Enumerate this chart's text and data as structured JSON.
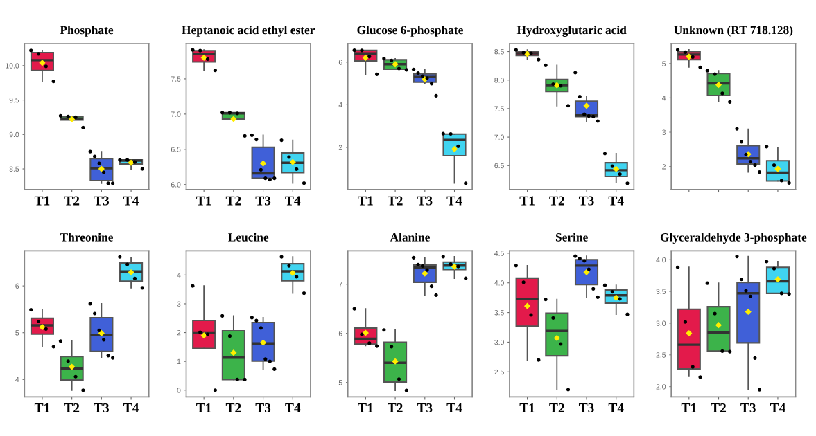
{
  "chart_data": [
    {
      "type": "box",
      "title": "Phosphate",
      "categories": [
        "T1",
        "T2",
        "T3",
        "T4"
      ],
      "colors": [
        "#e31a4b",
        "#3cb34a",
        "#4060d8",
        "#40d4f0"
      ],
      "ylim": [
        8.2,
        10.32
      ],
      "yticks": [
        {
          "value": 8.5,
          "label": "8.5"
        },
        {
          "value": 9.0,
          "label": "9.0"
        },
        {
          "value": 9.5,
          "label": "9.5"
        },
        {
          "value": 10.0,
          "label": "10.0"
        }
      ],
      "boxes": [
        {
          "low": 9.77,
          "q1": 9.93,
          "median": 10.08,
          "q3": 10.19,
          "high": 10.22,
          "mean": 10.04
        },
        {
          "low": 9.21,
          "q1": 9.21,
          "median": 9.23,
          "q3": 9.26,
          "high": 9.26,
          "mean": 9.22
        },
        {
          "low": 8.29,
          "q1": 8.33,
          "median": 8.51,
          "q3": 8.65,
          "high": 8.75,
          "mean": 8.5
        },
        {
          "low": 8.5,
          "q1": 8.57,
          "median": 8.62,
          "q3": 8.63,
          "high": 8.63,
          "mean": 8.59
        }
      ],
      "series": [
        {
          "type": "scatter",
          "color": "#000000",
          "marker": "circle",
          "x": [
            "T1",
            "T1",
            "T1",
            "T1",
            "T2",
            "T2",
            "T2",
            "T2",
            "T3",
            "T3",
            "T3",
            "T3",
            "T3",
            "T3",
            "T4",
            "T4",
            "T4",
            "T4"
          ],
          "values": [
            10.22,
            10.17,
            9.99,
            9.77,
            9.27,
            9.26,
            9.25,
            9.1,
            8.75,
            8.68,
            8.58,
            8.45,
            8.29,
            8.29,
            8.63,
            8.63,
            8.6,
            8.5
          ]
        }
      ]
    },
    {
      "type": "box",
      "title": "Heptanoic acid ethyl ester",
      "categories": [
        "T1",
        "T2",
        "T3",
        "T4"
      ],
      "colors": [
        "#e31a4b",
        "#3cb34a",
        "#4060d8",
        "#40d4f0"
      ],
      "ylim": [
        5.93,
        8.0
      ],
      "yticks": [
        {
          "value": 6.0,
          "label": "6.0"
        },
        {
          "value": 6.5,
          "label": "6.5"
        },
        {
          "value": 7.0,
          "label": "7.0"
        },
        {
          "value": 7.5,
          "label": "7.5"
        }
      ],
      "boxes": [
        {
          "low": 7.62,
          "q1": 7.74,
          "median": 7.85,
          "q3": 7.9,
          "high": 7.91,
          "mean": 7.8
        },
        {
          "low": 6.93,
          "q1": 6.93,
          "median": 7.01,
          "q3": 7.02,
          "high": 7.02,
          "mean": 6.93
        },
        {
          "low": 6.09,
          "q1": 6.09,
          "median": 6.16,
          "q3": 6.53,
          "high": 6.7,
          "mean": 6.3
        },
        {
          "low": 6.02,
          "q1": 6.17,
          "median": 6.31,
          "q3": 6.45,
          "high": 6.63,
          "mean": 6.32
        }
      ],
      "series": [
        {
          "type": "scatter",
          "color": "#000000",
          "marker": "circle",
          "x": [
            "T1",
            "T1",
            "T1",
            "T1",
            "T2",
            "T2",
            "T2",
            "T2",
            "T3",
            "T3",
            "T3",
            "T3",
            "T3",
            "T3",
            "T4",
            "T4",
            "T4",
            "T4"
          ],
          "values": [
            7.91,
            7.9,
            7.78,
            7.62,
            7.02,
            7.02,
            7.01,
            6.69,
            6.7,
            6.64,
            6.21,
            6.09,
            6.07,
            6.09,
            6.63,
            6.39,
            6.22,
            6.02
          ]
        }
      ]
    },
    {
      "type": "box",
      "title": "Glucose 6-phosphate",
      "categories": [
        "T1",
        "T2",
        "T3",
        "T4"
      ],
      "colors": [
        "#e31a4b",
        "#3cb34a",
        "#4060d8",
        "#40d4f0"
      ],
      "ylim": [
        0.02,
        6.87
      ],
      "yticks": [
        2,
        4,
        6
      ],
      "boxes": [
        {
          "low": 5.44,
          "q1": 6.06,
          "median": 6.41,
          "q3": 6.55,
          "high": 6.55,
          "mean": 6.21
        },
        {
          "low": 5.67,
          "q1": 5.67,
          "median": 5.9,
          "q3": 6.11,
          "high": 6.16,
          "mean": 5.9
        },
        {
          "low": 4.99,
          "q1": 5.06,
          "median": 5.3,
          "q3": 5.45,
          "high": 5.64,
          "mean": 5.19
        },
        {
          "low": 0.32,
          "q1": 1.61,
          "median": 2.35,
          "q3": 2.62,
          "high": 2.62,
          "mean": 1.92
        }
      ],
      "series": [
        {
          "type": "scatter",
          "color": "#000000",
          "marker": "circle",
          "x": [
            "T1",
            "T1",
            "T1",
            "T1",
            "T2",
            "T2",
            "T2",
            "T2",
            "T3",
            "T3",
            "T3",
            "T3",
            "T3",
            "T3",
            "T4",
            "T4",
            "T4",
            "T4"
          ],
          "values": [
            6.56,
            6.55,
            6.26,
            5.43,
            6.17,
            6.08,
            5.7,
            5.64,
            5.66,
            5.49,
            5.34,
            5.25,
            4.99,
            4.42,
            2.64,
            2.63,
            2.05,
            0.31
          ]
        }
      ]
    },
    {
      "type": "box",
      "title": "Hydroxyglutaric acid",
      "categories": [
        "T1",
        "T2",
        "T3",
        "T4"
      ],
      "colors": [
        "#e31a4b",
        "#3cb34a",
        "#4060d8",
        "#40d4f0"
      ],
      "ylim": [
        6.08,
        8.64
      ],
      "yticks": [
        {
          "value": 6.5,
          "label": "6.5"
        },
        {
          "value": 7.0,
          "label": "7.0"
        },
        {
          "value": 7.5,
          "label": "7.5"
        },
        {
          "value": 8.0,
          "label": "8.0"
        },
        {
          "value": 8.5,
          "label": "8.5"
        }
      ],
      "boxes": [
        {
          "low": 8.36,
          "q1": 8.43,
          "median": 8.47,
          "q3": 8.5,
          "high": 8.53,
          "mean": 8.46
        },
        {
          "low": 7.55,
          "q1": 7.8,
          "median": 7.91,
          "q3": 8.01,
          "high": 8.26,
          "mean": 7.91
        },
        {
          "low": 7.28,
          "q1": 7.36,
          "median": 7.38,
          "q3": 7.63,
          "high": 7.71,
          "mean": 7.55
        },
        {
          "low": 6.2,
          "q1": 6.31,
          "median": 6.42,
          "q3": 6.55,
          "high": 6.71,
          "mean": 6.44
        }
      ],
      "series": [
        {
          "type": "scatter",
          "color": "#000000",
          "marker": "circle",
          "x": [
            "T1",
            "T1",
            "T1",
            "T1",
            "T2",
            "T2",
            "T2",
            "T2",
            "T3",
            "T3",
            "T3",
            "T3",
            "T3",
            "T3",
            "T4",
            "T4",
            "T4",
            "T4"
          ],
          "values": [
            8.53,
            8.48,
            8.47,
            8.36,
            8.26,
            7.93,
            7.9,
            7.55,
            8.13,
            7.71,
            7.4,
            7.37,
            7.36,
            7.28,
            6.71,
            6.49,
            6.35,
            6.19
          ]
        }
      ]
    },
    {
      "type": "box",
      "title": "Unknown (RT 718.128)",
      "categories": [
        "T1",
        "T2",
        "T3",
        "T4"
      ],
      "tick_labels": "y",
      "colors": [
        "#e31a4b",
        "#3cb34a",
        "#4060d8",
        "#40d4f0"
      ],
      "ylim": [
        1.33,
        5.58
      ],
      "yticks": [
        2,
        3,
        4,
        5
      ],
      "boxes": [
        {
          "low": 4.9,
          "q1": 5.11,
          "median": 5.26,
          "q3": 5.35,
          "high": 5.4,
          "mean": 5.2
        },
        {
          "low": 3.89,
          "q1": 4.07,
          "median": 4.42,
          "q3": 4.71,
          "high": 4.79,
          "mean": 4.38
        },
        {
          "low": 1.84,
          "q1": 2.07,
          "median": 2.24,
          "q3": 2.61,
          "high": 3.09,
          "mean": 2.36
        },
        {
          "low": 1.58,
          "q1": 1.58,
          "median": 1.82,
          "q3": 2.17,
          "high": 2.56,
          "mean": 1.93
        }
      ],
      "series": [
        {
          "type": "scatter",
          "color": "#000000",
          "marker": "circle",
          "x": [
            "T1",
            "T1",
            "T1",
            "T1",
            "T2",
            "T2",
            "T2",
            "T2",
            "T3",
            "T3",
            "T3",
            "T3",
            "T3",
            "T3",
            "T4",
            "T4",
            "T4",
            "T4"
          ],
          "values": [
            5.4,
            5.33,
            5.19,
            4.89,
            4.79,
            4.69,
            4.13,
            3.88,
            3.1,
            2.72,
            2.35,
            2.14,
            2.04,
            1.84,
            2.58,
            2.04,
            1.59,
            1.52
          ]
        }
      ]
    },
    {
      "type": "box",
      "title": "Threonine",
      "categories": [
        "T1",
        "T2",
        "T3",
        "T4"
      ],
      "colors": [
        "#e31a4b",
        "#3cb34a",
        "#4060d8",
        "#40d4f0"
      ],
      "ylim": [
        3.63,
        6.75
      ],
      "yticks": [
        4,
        5,
        6
      ],
      "boxes": [
        {
          "low": 4.7,
          "q1": 4.97,
          "median": 5.16,
          "q3": 5.31,
          "high": 5.49,
          "mean": 5.12
        },
        {
          "low": 3.77,
          "q1": 3.99,
          "median": 4.23,
          "q3": 4.49,
          "high": 4.82,
          "mean": 4.27
        },
        {
          "low": 4.47,
          "q1": 4.6,
          "median": 4.95,
          "q3": 5.32,
          "high": 5.62,
          "mean": 4.99
        },
        {
          "low": 5.96,
          "q1": 6.1,
          "median": 6.31,
          "q3": 6.49,
          "high": 6.61,
          "mean": 6.29
        }
      ],
      "series": [
        {
          "type": "scatter",
          "color": "#000000",
          "marker": "circle",
          "x": [
            "T1",
            "T1",
            "T1",
            "T1",
            "T2",
            "T2",
            "T2",
            "T2",
            "T3",
            "T3",
            "T3",
            "T3",
            "T3",
            "T3",
            "T4",
            "T4",
            "T4",
            "T4"
          ],
          "values": [
            5.49,
            5.24,
            5.08,
            4.7,
            4.82,
            4.39,
            4.06,
            3.77,
            5.62,
            5.41,
            5.05,
            4.85,
            4.51,
            4.46,
            6.62,
            6.46,
            6.16,
            5.96
          ]
        }
      ]
    },
    {
      "type": "box",
      "title": "Leucine",
      "categories": [
        "T1",
        "T2",
        "T3",
        "T4"
      ],
      "colors": [
        "#e31a4b",
        "#3cb34a",
        "#4060d8",
        "#40d4f0"
      ],
      "ylim": [
        -0.23,
        4.84
      ],
      "yticks": [
        0,
        1,
        2,
        3,
        4
      ],
      "boxes": [
        {
          "low": 1.45,
          "q1": 1.45,
          "median": 1.98,
          "q3": 2.42,
          "high": 3.62,
          "mean": 1.9
        },
        {
          "low": 0.37,
          "q1": 0.37,
          "median": 1.13,
          "q3": 2.06,
          "high": 2.58,
          "mean": 1.3
        },
        {
          "low": 0.73,
          "q1": 1.01,
          "median": 1.62,
          "q3": 2.35,
          "high": 2.52,
          "mean": 1.65
        },
        {
          "low": 3.37,
          "q1": 3.8,
          "median": 4.13,
          "q3": 4.39,
          "high": 4.63,
          "mean": 4.07
        }
      ],
      "series": [
        {
          "type": "scatter",
          "color": "#000000",
          "marker": "circle",
          "x": [
            "T1",
            "T1",
            "T1",
            "T1",
            "T2",
            "T2",
            "T2",
            "T2",
            "T3",
            "T3",
            "T3",
            "T3",
            "T3",
            "T3",
            "T4",
            "T4",
            "T4",
            "T4"
          ],
          "values": [
            3.62,
            2.01,
            1.94,
            0.0,
            2.58,
            1.88,
            0.37,
            0.37,
            2.52,
            2.42,
            2.16,
            1.08,
            1.0,
            0.73,
            4.63,
            4.32,
            3.94,
            3.37
          ]
        }
      ]
    },
    {
      "type": "box",
      "title": "Alanine",
      "categories": [
        "T1",
        "T2",
        "T3",
        "T4"
      ],
      "colors": [
        "#e31a4b",
        "#3cb34a",
        "#4060d8",
        "#40d4f0"
      ],
      "ylim": [
        4.71,
        7.68
      ],
      "yticks": [
        5,
        6,
        7
      ],
      "boxes": [
        {
          "low": 5.75,
          "q1": 5.78,
          "median": 5.89,
          "q3": 6.11,
          "high": 6.5,
          "mean": 6.01
        },
        {
          "low": 4.84,
          "q1": 5.01,
          "median": 5.4,
          "q3": 5.82,
          "high": 6.07,
          "mean": 5.43
        },
        {
          "low": 6.78,
          "q1": 7.04,
          "median": 7.34,
          "q3": 7.39,
          "high": 7.54,
          "mean": 7.22
        },
        {
          "low": 7.12,
          "q1": 7.3,
          "median": 7.38,
          "q3": 7.45,
          "high": 7.56,
          "mean": 7.36
        }
      ],
      "series": [
        {
          "type": "scatter",
          "color": "#000000",
          "marker": "circle",
          "x": [
            "T1",
            "T1",
            "T1",
            "T1",
            "T2",
            "T2",
            "T2",
            "T2",
            "T3",
            "T3",
            "T3",
            "T3",
            "T3",
            "T3",
            "T4",
            "T4",
            "T4",
            "T4"
          ],
          "values": [
            6.5,
            5.98,
            5.8,
            5.74,
            6.07,
            5.73,
            5.07,
            4.84,
            7.54,
            7.4,
            7.37,
            7.29,
            6.96,
            6.78,
            7.56,
            7.41,
            7.36,
            7.12
          ]
        }
      ]
    },
    {
      "type": "box",
      "title": "Serine",
      "categories": [
        "T1",
        "T2",
        "T3",
        "T4"
      ],
      "colors": [
        "#e31a4b",
        "#3cb34a",
        "#4060d8",
        "#40d4f0"
      ],
      "ylim": [
        2.08,
        4.54
      ],
      "yticks": [
        {
          "value": 2.5,
          "label": "2.5"
        },
        {
          "value": 3.0,
          "label": "3.0"
        },
        {
          "value": 3.5,
          "label": "3.5"
        },
        {
          "value": 4.0,
          "label": "4.0"
        },
        {
          "value": 4.5,
          "label": "4.5"
        }
      ],
      "boxes": [
        {
          "low": 2.7,
          "q1": 3.27,
          "median": 3.73,
          "q3": 4.08,
          "high": 4.29,
          "mean": 3.61
        },
        {
          "low": 2.2,
          "q1": 2.77,
          "median": 3.19,
          "q3": 3.49,
          "high": 3.72,
          "mean": 3.07
        },
        {
          "low": 3.76,
          "q1": 3.97,
          "median": 4.29,
          "q3": 4.39,
          "high": 4.45,
          "mean": 4.18
        },
        {
          "low": 3.47,
          "q1": 3.66,
          "median": 3.79,
          "q3": 3.88,
          "high": 3.96,
          "mean": 3.75
        }
      ],
      "series": [
        {
          "type": "scatter",
          "color": "#000000",
          "marker": "circle",
          "x": [
            "T1",
            "T1",
            "T1",
            "T1",
            "T2",
            "T2",
            "T2",
            "T2",
            "T3",
            "T3",
            "T3",
            "T3",
            "T3",
            "T3",
            "T4",
            "T4",
            "T4",
            "T4"
          ],
          "values": [
            4.29,
            4.01,
            3.46,
            2.7,
            3.72,
            3.41,
            2.97,
            2.2,
            4.45,
            4.41,
            4.37,
            4.23,
            3.9,
            3.76,
            3.96,
            3.85,
            3.73,
            3.47
          ]
        }
      ]
    },
    {
      "type": "box",
      "title": "Glyceraldehyde 3-phosphate",
      "categories": [
        "T1",
        "T2",
        "T3",
        "T4"
      ],
      "colors": [
        "#e31a4b",
        "#3cb34a",
        "#4060d8",
        "#40d4f0"
      ],
      "ylim": [
        1.84,
        4.14
      ],
      "yticks": [
        {
          "value": 2.0,
          "label": "2.0"
        },
        {
          "value": 2.5,
          "label": "2.5"
        },
        {
          "value": 3.0,
          "label": "3.0"
        },
        {
          "value": 3.5,
          "label": "3.5"
        },
        {
          "value": 4.0,
          "label": "4.0"
        }
      ],
      "boxes": [
        {
          "low": 2.16,
          "q1": 2.28,
          "median": 2.66,
          "q3": 3.22,
          "high": 3.88,
          "mean": 2.84
        },
        {
          "low": 2.56,
          "q1": 2.56,
          "median": 2.85,
          "q3": 3.26,
          "high": 3.63,
          "mean": 2.97
        },
        {
          "low": 1.95,
          "q1": 2.69,
          "median": 3.47,
          "q3": 3.64,
          "high": 4.05,
          "mean": 3.18
        },
        {
          "low": 3.47,
          "q1": 3.47,
          "median": 3.66,
          "q3": 3.88,
          "high": 3.97,
          "mean": 3.69
        }
      ],
      "series": [
        {
          "type": "scatter",
          "color": "#000000",
          "marker": "circle",
          "x": [
            "T1",
            "T1",
            "T1",
            "T1",
            "T2",
            "T2",
            "T2",
            "T2",
            "T3",
            "T3",
            "T3",
            "T3",
            "T3",
            "T3",
            "T4",
            "T4",
            "T4",
            "T4"
          ],
          "values": [
            3.88,
            3.02,
            2.31,
            2.15,
            3.63,
            3.15,
            2.56,
            2.55,
            4.05,
            3.69,
            3.51,
            3.42,
            2.45,
            1.95,
            3.97,
            3.86,
            3.47,
            3.46
          ]
        }
      ]
    }
  ]
}
